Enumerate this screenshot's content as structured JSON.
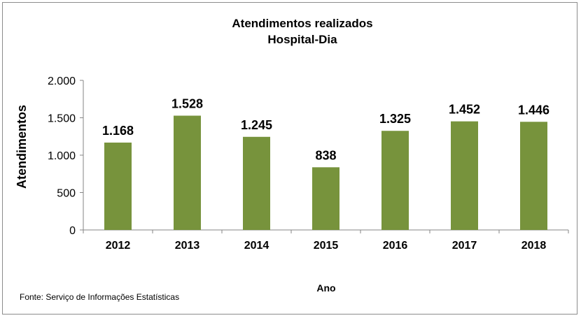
{
  "chart_data": {
    "type": "bar",
    "title": "Atendimentos realizados",
    "subtitle": "Hospital-Dia",
    "xlabel": "Ano",
    "ylabel": "Atendimentos",
    "categories": [
      "2012",
      "2013",
      "2014",
      "2015",
      "2016",
      "2017",
      "2018"
    ],
    "values": [
      1168,
      1528,
      1245,
      838,
      1325,
      1452,
      1446
    ],
    "value_labels": [
      "1.168",
      "1.528",
      "1.245",
      "838",
      "1.325",
      "1.452",
      "1.446"
    ],
    "ylim": [
      0,
      2000
    ],
    "yticks": [
      0,
      500,
      1000,
      1500,
      2000
    ],
    "ytick_labels": [
      "0",
      "500",
      "1.000",
      "1.500",
      "2.000"
    ],
    "grid": false,
    "legend": false,
    "bar_color": "#77933c"
  },
  "source": "Fonte: Serviço de Informações Estatísticas"
}
